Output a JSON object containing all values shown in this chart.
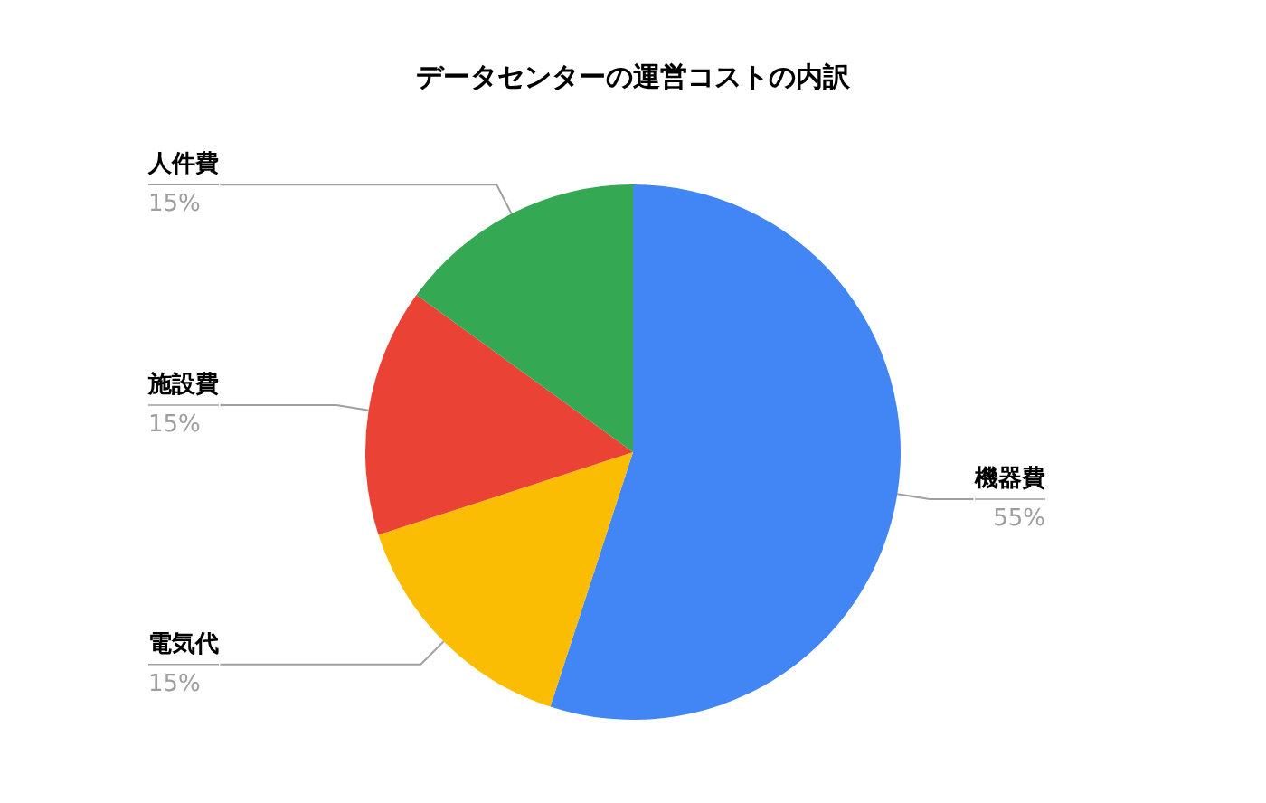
{
  "chart_data": {
    "type": "pie",
    "title": "データセンターの運営コストの内訳",
    "categories": [
      "機器費",
      "電気代",
      "施設費",
      "人件費"
    ],
    "values": [
      55,
      15,
      15,
      15
    ],
    "colors": [
      "#4285f4",
      "#fbbc04",
      "#ea4335",
      "#34a853"
    ],
    "value_labels": [
      "55%",
      "15%",
      "15%",
      "15%"
    ]
  }
}
